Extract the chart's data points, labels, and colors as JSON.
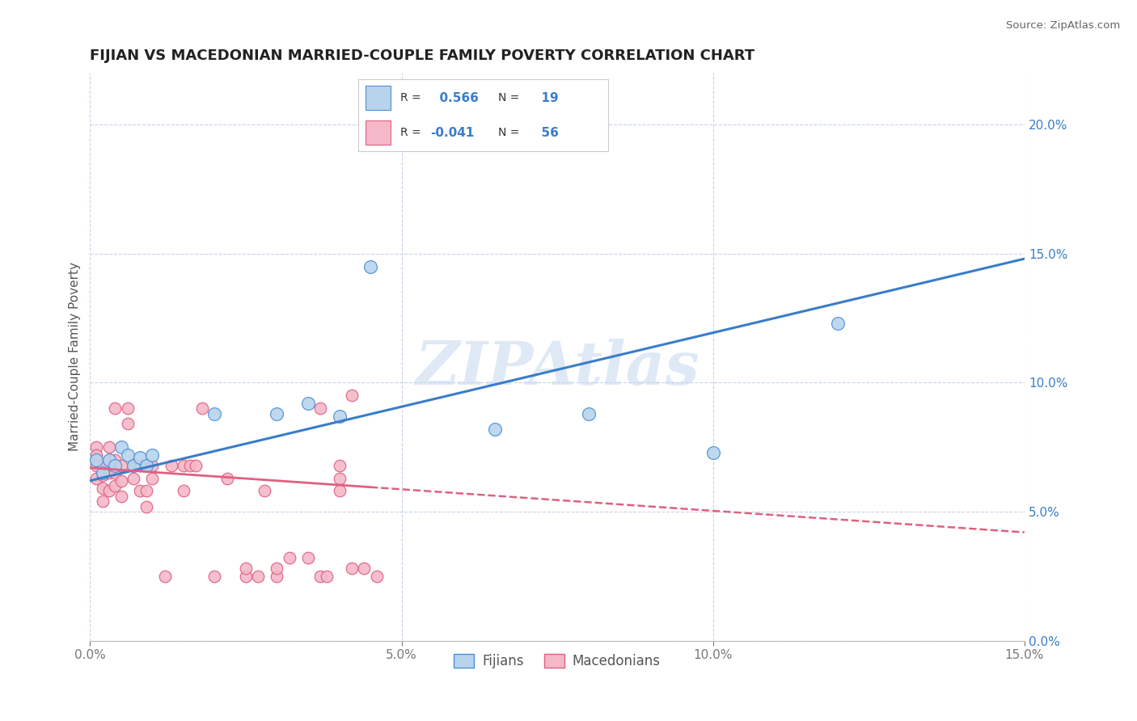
{
  "title": "FIJIAN VS MACEDONIAN MARRIED-COUPLE FAMILY POVERTY CORRELATION CHART",
  "source": "Source: ZipAtlas.com",
  "ylabel": "Married-Couple Family Poverty",
  "xlim": [
    0.0,
    0.15
  ],
  "ylim": [
    0.0,
    0.22
  ],
  "xticks": [
    0.0,
    0.05,
    0.1,
    0.15
  ],
  "xtick_labels": [
    "0.0%",
    "5.0%",
    "10.0%",
    "15.0%"
  ],
  "yticks_right": [
    0.0,
    0.05,
    0.1,
    0.15,
    0.2
  ],
  "ytick_labels_right": [
    "0.0%",
    "5.0%",
    "10.0%",
    "15.0%",
    "20.0%"
  ],
  "fijian_color": "#b8d4ed",
  "macedonian_color": "#f4b8c8",
  "fijian_edge_color": "#4a90d9",
  "macedonian_edge_color": "#e06080",
  "fijian_line_color": "#3a7dc9",
  "macedonian_line_color": "#e06080",
  "fijian_R": 0.566,
  "fijian_N": 19,
  "macedonian_R": -0.041,
  "macedonian_N": 56,
  "watermark": "ZIPAtlas",
  "background_color": "#ffffff",
  "grid_color": "#c8d4e8",
  "fijian_x": [
    0.001,
    0.002,
    0.003,
    0.004,
    0.005,
    0.006,
    0.007,
    0.008,
    0.009,
    0.01,
    0.02,
    0.03,
    0.035,
    0.04,
    0.045,
    0.065,
    0.08,
    0.1,
    0.12
  ],
  "fijian_y": [
    0.07,
    0.065,
    0.07,
    0.068,
    0.075,
    0.072,
    0.068,
    0.071,
    0.068,
    0.072,
    0.088,
    0.088,
    0.092,
    0.087,
    0.145,
    0.082,
    0.088,
    0.073,
    0.123
  ],
  "macedonian_x": [
    0.001,
    0.001,
    0.001,
    0.001,
    0.002,
    0.002,
    0.002,
    0.002,
    0.003,
    0.003,
    0.003,
    0.003,
    0.004,
    0.004,
    0.004,
    0.004,
    0.005,
    0.005,
    0.005,
    0.006,
    0.006,
    0.007,
    0.007,
    0.008,
    0.008,
    0.009,
    0.009,
    0.01,
    0.01,
    0.012,
    0.013,
    0.015,
    0.015,
    0.016,
    0.017,
    0.018,
    0.02,
    0.022,
    0.025,
    0.025,
    0.027,
    0.028,
    0.03,
    0.03,
    0.032,
    0.035,
    0.037,
    0.037,
    0.038,
    0.04,
    0.04,
    0.042,
    0.04,
    0.042,
    0.044,
    0.046
  ],
  "macedonian_y": [
    0.075,
    0.072,
    0.068,
    0.063,
    0.068,
    0.064,
    0.059,
    0.054,
    0.075,
    0.07,
    0.065,
    0.058,
    0.07,
    0.065,
    0.06,
    0.09,
    0.068,
    0.062,
    0.056,
    0.09,
    0.084,
    0.068,
    0.063,
    0.068,
    0.058,
    0.058,
    0.052,
    0.068,
    0.063,
    0.025,
    0.068,
    0.068,
    0.058,
    0.068,
    0.068,
    0.09,
    0.025,
    0.063,
    0.025,
    0.028,
    0.025,
    0.058,
    0.025,
    0.028,
    0.032,
    0.032,
    0.09,
    0.025,
    0.025,
    0.068,
    0.063,
    0.095,
    0.058,
    0.028,
    0.028,
    0.025
  ],
  "mac_line_cutoff": 0.045,
  "fij_line_start": 0.0,
  "fij_line_end": 0.15,
  "fij_line_y_start": 0.062,
  "fij_line_y_end": 0.148,
  "mac_line_y_start": 0.067,
  "mac_line_y_end": 0.042
}
